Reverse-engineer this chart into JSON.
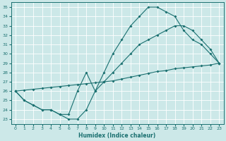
{
  "xlabel": "Humidex (Indice chaleur)",
  "xlim": [
    -0.5,
    23.5
  ],
  "ylim": [
    22.5,
    35.5
  ],
  "xticks": [
    0,
    1,
    2,
    3,
    4,
    5,
    6,
    7,
    8,
    9,
    10,
    11,
    12,
    13,
    14,
    15,
    16,
    17,
    18,
    19,
    20,
    21,
    22,
    23
  ],
  "yticks": [
    23,
    24,
    25,
    26,
    27,
    28,
    29,
    30,
    31,
    32,
    33,
    34,
    35
  ],
  "bg_color": "#cce8e8",
  "line_color": "#1a7070",
  "grid_color": "#ffffff",
  "series": [
    {
      "x": [
        0,
        1,
        2,
        3,
        4,
        5,
        6,
        7,
        8,
        9,
        10,
        11,
        12,
        13,
        14,
        15,
        16,
        17,
        18,
        19,
        20,
        21,
        22,
        23
      ],
      "y": [
        26,
        25,
        24.5,
        24,
        24,
        23.5,
        23,
        23,
        24,
        26,
        28,
        30,
        31.5,
        33,
        34,
        35,
        35,
        34.5,
        34,
        32.5,
        31.5,
        31,
        30,
        29
      ]
    },
    {
      "x": [
        0,
        1,
        2,
        3,
        4,
        5,
        6,
        7,
        8,
        9,
        10,
        11,
        12,
        13,
        14,
        15,
        16,
        17,
        18,
        19,
        20,
        21,
        22,
        23
      ],
      "y": [
        26,
        26.1,
        26.2,
        26.3,
        26.4,
        26.5,
        26.6,
        26.7,
        26.8,
        26.9,
        27.0,
        27.1,
        27.3,
        27.5,
        27.7,
        27.9,
        28.1,
        28.2,
        28.4,
        28.5,
        28.6,
        28.7,
        28.8,
        29.0
      ]
    },
    {
      "x": [
        0,
        1,
        2,
        3,
        4,
        5,
        6,
        7,
        8,
        9,
        10,
        11,
        12,
        13,
        14,
        15,
        16,
        17,
        18,
        19,
        20,
        21,
        22,
        23
      ],
      "y": [
        26,
        25,
        24.5,
        24,
        24,
        23.5,
        23.5,
        26,
        28,
        26,
        27,
        28,
        29,
        30,
        31,
        31.5,
        32,
        32.5,
        33,
        33,
        32.5,
        31.5,
        30.5,
        29
      ]
    }
  ]
}
